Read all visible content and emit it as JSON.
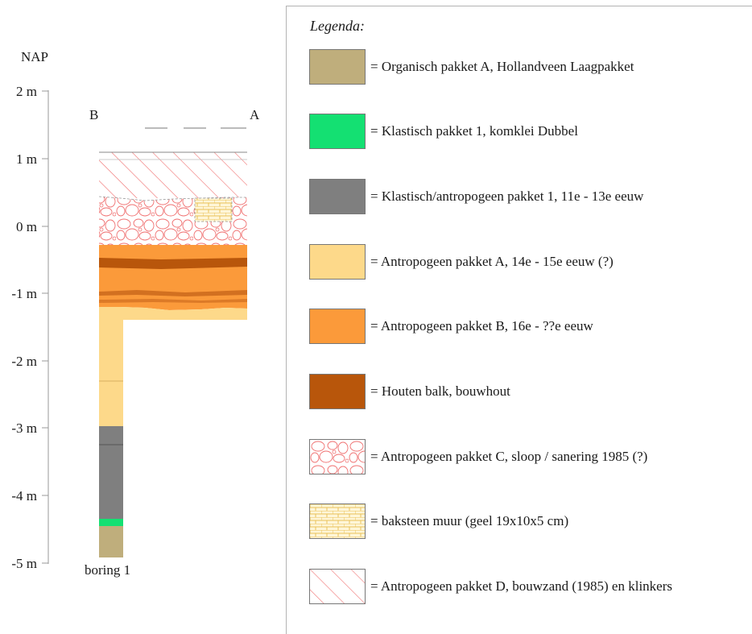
{
  "profile": {
    "datum_label": "NAP",
    "depth_ticks": [
      "2 m",
      "1 m",
      "0 m",
      "-1 m",
      "-2 m",
      "-3 m",
      "-4 m",
      "-5 m"
    ],
    "section_start": "B",
    "section_end": "A",
    "boring_label": "boring 1"
  },
  "legend": {
    "title": "Legenda:",
    "items": [
      {
        "key": "organic",
        "label": "= Organisch pakket A, Hollandveen Laagpakket",
        "color": "#bfae7c",
        "pattern": "solid"
      },
      {
        "key": "clay",
        "label": "= Klastisch pakket 1, komklei Dubbel",
        "color": "#14e072",
        "pattern": "solid"
      },
      {
        "key": "clastic",
        "label": "= Klastisch/antropogeen pakket 1, 11e - 13e eeuw",
        "color": "#7f7f7f",
        "pattern": "solid"
      },
      {
        "key": "anthA",
        "label": "= Antropogeen pakket A, 14e - 15e eeuw (?)",
        "color": "#fdd98a",
        "pattern": "solid"
      },
      {
        "key": "anthB",
        "label": "= Antropogeen pakket B, 16e - ??e eeuw",
        "color": "#fb9a3a",
        "pattern": "solid"
      },
      {
        "key": "beam",
        "label": "= Houten balk, bouwhout",
        "color": "#b8560b",
        "pattern": "solid"
      },
      {
        "key": "anthC",
        "label": "= Antropogeen pakket C, sloop / sanering 1985 (?)",
        "color": "#f05050",
        "pattern": "rubble"
      },
      {
        "key": "brick",
        "label": "= baksteen muur (geel 19x10x5 cm)",
        "color": "#e8c25a",
        "pattern": "brick"
      },
      {
        "key": "anthD",
        "label": "= Antropogeen pakket D, bouwzand (1985) en klinkers",
        "color": "#f06464",
        "pattern": "hatch"
      }
    ]
  }
}
